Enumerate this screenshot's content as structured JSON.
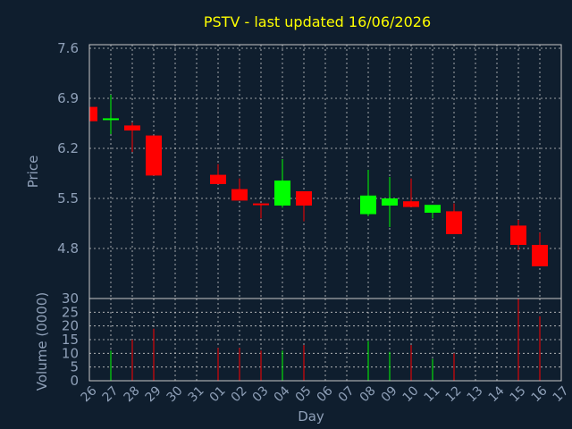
{
  "chart_data": {
    "type": "candlestick",
    "title": "PSTV - last updated 16/06/2026",
    "price_axis": {
      "label": "Price",
      "ticks": [
        7.6,
        6.9,
        6.2,
        5.5,
        4.8
      ],
      "ylim": [
        4.1,
        7.65
      ]
    },
    "volume_axis": {
      "label": "Volume (0000)",
      "ticks": [
        30,
        25,
        20,
        15,
        10,
        5,
        0
      ],
      "ylim": [
        0,
        30
      ]
    },
    "xlabel": "Day",
    "x_ticks": [
      "26",
      "27",
      "28",
      "29",
      "30",
      "31",
      "01",
      "02",
      "03",
      "04",
      "05",
      "06",
      "07",
      "08",
      "09",
      "10",
      "11",
      "12",
      "13",
      "14",
      "15",
      "16",
      "17"
    ],
    "grid": true,
    "colors": {
      "up": "#00ff00",
      "down": "#ff0000",
      "background": "#0f1e2e",
      "title": "#ffff00",
      "text": "#8fa0b8",
      "grid": "#c8c8c8"
    },
    "candles": [
      {
        "day": "26",
        "open": 6.78,
        "high": 6.78,
        "low": 6.58,
        "close": 6.58
      },
      {
        "day": "27",
        "open": 6.6,
        "high": 6.95,
        "low": 6.4,
        "close": 6.62
      },
      {
        "day": "28",
        "open": 6.52,
        "high": 6.56,
        "low": 6.15,
        "close": 6.45
      },
      {
        "day": "29",
        "open": 6.38,
        "high": 6.38,
        "low": 5.82,
        "close": 5.82
      },
      {
        "day": "01",
        "open": 5.83,
        "high": 5.98,
        "low": 5.7,
        "close": 5.7
      },
      {
        "day": "02",
        "open": 5.63,
        "high": 5.78,
        "low": 5.47,
        "close": 5.47
      },
      {
        "day": "03",
        "open": 5.43,
        "high": 5.43,
        "low": 5.22,
        "close": 5.41
      },
      {
        "day": "04",
        "open": 5.4,
        "high": 6.05,
        "low": 5.37,
        "close": 5.75
      },
      {
        "day": "05",
        "open": 5.6,
        "high": 5.6,
        "low": 5.18,
        "close": 5.4
      },
      {
        "day": "08",
        "open": 5.28,
        "high": 5.9,
        "low": 5.25,
        "close": 5.54
      },
      {
        "day": "09",
        "open": 5.4,
        "high": 5.8,
        "low": 5.1,
        "close": 5.5
      },
      {
        "day": "10",
        "open": 5.46,
        "high": 5.78,
        "low": 5.38,
        "close": 5.38
      },
      {
        "day": "11",
        "open": 5.3,
        "high": 5.4,
        "low": 5.22,
        "close": 5.41
      },
      {
        "day": "12",
        "open": 5.32,
        "high": 5.43,
        "low": 5.0,
        "close": 5.0
      },
      {
        "day": "15",
        "open": 5.12,
        "high": 5.2,
        "low": 4.78,
        "close": 4.85
      },
      {
        "day": "16",
        "open": 4.85,
        "high": 5.02,
        "low": 4.55,
        "close": 4.55
      }
    ],
    "volume": [
      {
        "day": "26",
        "value": 0
      },
      {
        "day": "27",
        "value": 11
      },
      {
        "day": "28",
        "value": 15
      },
      {
        "day": "29",
        "value": 19
      },
      {
        "day": "01",
        "value": 12
      },
      {
        "day": "02",
        "value": 12
      },
      {
        "day": "03",
        "value": 11
      },
      {
        "day": "04",
        "value": 11
      },
      {
        "day": "05",
        "value": 13
      },
      {
        "day": "08",
        "value": 14.5
      },
      {
        "day": "09",
        "value": 10.5
      },
      {
        "day": "10",
        "value": 13
      },
      {
        "day": "11",
        "value": 8
      },
      {
        "day": "12",
        "value": 10
      },
      {
        "day": "15",
        "value": 30
      },
      {
        "day": "16",
        "value": 23.5
      }
    ]
  }
}
